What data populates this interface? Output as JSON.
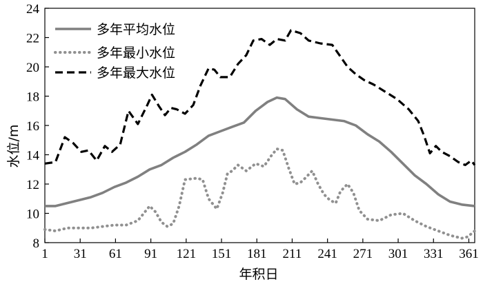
{
  "chart_data": {
    "type": "line",
    "title": "",
    "xlabel": "年积日",
    "ylabel": "水位/m",
    "xlim": [
      1,
      366
    ],
    "ylim": [
      8,
      24
    ],
    "xticks": [
      1,
      31,
      61,
      91,
      121,
      151,
      181,
      211,
      241,
      271,
      301,
      331,
      361
    ],
    "yticks": [
      8,
      10,
      12,
      14,
      16,
      18,
      20,
      22,
      24
    ],
    "grid": false,
    "legend_position": "top-left",
    "series": [
      {
        "name": "多年平均水位",
        "style": "solid",
        "color": "#808080",
        "points": [
          [
            1,
            10.5
          ],
          [
            10,
            10.5
          ],
          [
            20,
            10.7
          ],
          [
            30,
            10.9
          ],
          [
            40,
            11.1
          ],
          [
            50,
            11.4
          ],
          [
            60,
            11.8
          ],
          [
            70,
            12.1
          ],
          [
            80,
            12.5
          ],
          [
            90,
            13.0
          ],
          [
            100,
            13.3
          ],
          [
            110,
            13.8
          ],
          [
            120,
            14.2
          ],
          [
            130,
            14.7
          ],
          [
            140,
            15.3
          ],
          [
            150,
            15.6
          ],
          [
            160,
            15.9
          ],
          [
            170,
            16.2
          ],
          [
            180,
            17.0
          ],
          [
            190,
            17.6
          ],
          [
            198,
            17.9
          ],
          [
            205,
            17.8
          ],
          [
            215,
            17.1
          ],
          [
            225,
            16.6
          ],
          [
            235,
            16.5
          ],
          [
            245,
            16.4
          ],
          [
            255,
            16.3
          ],
          [
            265,
            16.0
          ],
          [
            275,
            15.4
          ],
          [
            285,
            14.9
          ],
          [
            295,
            14.2
          ],
          [
            305,
            13.4
          ],
          [
            315,
            12.6
          ],
          [
            325,
            12.0
          ],
          [
            335,
            11.3
          ],
          [
            345,
            10.8
          ],
          [
            355,
            10.6
          ],
          [
            366,
            10.5
          ]
        ]
      },
      {
        "name": "多年最小水位",
        "style": "dotted",
        "color": "#909090",
        "points": [
          [
            1,
            8.9
          ],
          [
            10,
            8.8
          ],
          [
            20,
            9.0
          ],
          [
            30,
            9.0
          ],
          [
            40,
            9.0
          ],
          [
            50,
            9.1
          ],
          [
            60,
            9.2
          ],
          [
            70,
            9.2
          ],
          [
            80,
            9.5
          ],
          [
            85,
            10.0
          ],
          [
            90,
            10.5
          ],
          [
            95,
            10.1
          ],
          [
            100,
            9.4
          ],
          [
            105,
            9.1
          ],
          [
            110,
            9.3
          ],
          [
            115,
            10.5
          ],
          [
            120,
            12.3
          ],
          [
            130,
            12.4
          ],
          [
            135,
            12.3
          ],
          [
            140,
            11.0
          ],
          [
            147,
            10.3
          ],
          [
            152,
            11.4
          ],
          [
            156,
            12.7
          ],
          [
            160,
            12.9
          ],
          [
            165,
            13.3
          ],
          [
            172,
            12.9
          ],
          [
            180,
            13.4
          ],
          [
            187,
            13.2
          ],
          [
            193,
            13.9
          ],
          [
            198,
            14.4
          ],
          [
            203,
            14.3
          ],
          [
            208,
            13.1
          ],
          [
            213,
            12.0
          ],
          [
            218,
            12.1
          ],
          [
            222,
            12.4
          ],
          [
            228,
            12.9
          ],
          [
            233,
            12.0
          ],
          [
            238,
            11.3
          ],
          [
            243,
            10.9
          ],
          [
            248,
            10.7
          ],
          [
            252,
            11.5
          ],
          [
            258,
            12.0
          ],
          [
            263,
            11.4
          ],
          [
            268,
            10.2
          ],
          [
            275,
            9.6
          ],
          [
            285,
            9.5
          ],
          [
            295,
            9.9
          ],
          [
            305,
            10.0
          ],
          [
            315,
            9.5
          ],
          [
            325,
            9.1
          ],
          [
            335,
            8.8
          ],
          [
            345,
            8.5
          ],
          [
            355,
            8.3
          ],
          [
            360,
            8.4
          ],
          [
            366,
            8.8
          ]
        ]
      },
      {
        "name": "多年最大水位",
        "style": "dashed",
        "color": "#000000",
        "points": [
          [
            1,
            13.4
          ],
          [
            10,
            13.5
          ],
          [
            18,
            15.2
          ],
          [
            25,
            14.8
          ],
          [
            32,
            14.2
          ],
          [
            38,
            14.3
          ],
          [
            45,
            13.6
          ],
          [
            52,
            14.6
          ],
          [
            58,
            14.2
          ],
          [
            65,
            14.7
          ],
          [
            72,
            17.0
          ],
          [
            80,
            16.1
          ],
          [
            88,
            17.4
          ],
          [
            92,
            18.1
          ],
          [
            98,
            17.3
          ],
          [
            103,
            16.7
          ],
          [
            108,
            17.2
          ],
          [
            113,
            17.1
          ],
          [
            120,
            16.8
          ],
          [
            127,
            17.4
          ],
          [
            133,
            18.7
          ],
          [
            140,
            19.9
          ],
          [
            145,
            19.8
          ],
          [
            150,
            19.3
          ],
          [
            158,
            19.3
          ],
          [
            165,
            20.2
          ],
          [
            172,
            20.8
          ],
          [
            178,
            21.8
          ],
          [
            185,
            21.9
          ],
          [
            192,
            21.5
          ],
          [
            198,
            21.9
          ],
          [
            205,
            21.8
          ],
          [
            210,
            22.5
          ],
          [
            218,
            22.3
          ],
          [
            225,
            21.8
          ],
          [
            235,
            21.6
          ],
          [
            245,
            21.5
          ],
          [
            252,
            20.7
          ],
          [
            258,
            20.0
          ],
          [
            265,
            19.5
          ],
          [
            272,
            19.1
          ],
          [
            280,
            18.8
          ],
          [
            290,
            18.3
          ],
          [
            300,
            17.8
          ],
          [
            310,
            17.1
          ],
          [
            318,
            16.3
          ],
          [
            323,
            15.3
          ],
          [
            328,
            14.1
          ],
          [
            333,
            14.6
          ],
          [
            338,
            14.2
          ],
          [
            345,
            13.9
          ],
          [
            352,
            13.5
          ],
          [
            358,
            13.3
          ],
          [
            363,
            13.6
          ],
          [
            366,
            13.3
          ]
        ]
      }
    ]
  }
}
